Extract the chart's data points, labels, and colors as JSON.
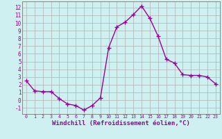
{
  "x": [
    0,
    1,
    2,
    3,
    4,
    5,
    6,
    7,
    8,
    9,
    10,
    11,
    12,
    13,
    14,
    15,
    16,
    17,
    18,
    19,
    20,
    21,
    22,
    23
  ],
  "y": [
    2.5,
    1.2,
    1.1,
    1.1,
    0.2,
    -0.5,
    -0.7,
    -1.3,
    -0.7,
    0.3,
    6.8,
    9.5,
    10.1,
    11.1,
    12.2,
    10.6,
    8.3,
    5.3,
    4.8,
    3.3,
    3.2,
    3.2,
    3.0,
    2.1
  ],
  "line_color": "#990099",
  "marker": "+",
  "marker_size": 4,
  "linewidth": 1.0,
  "xlabel": "Windchill (Refroidissement éolien,°C)",
  "xlabel_fontsize": 6.5,
  "background_color": "#cff0f0",
  "grid_color": "#b0b0b0",
  "tick_label_color": "#990099",
  "ylim": [
    -1.8,
    12.8
  ],
  "xlim": [
    -0.5,
    23.5
  ],
  "yticks": [
    -1,
    0,
    1,
    2,
    3,
    4,
    5,
    6,
    7,
    8,
    9,
    10,
    11,
    12
  ],
  "xticks": [
    0,
    1,
    2,
    3,
    4,
    5,
    6,
    7,
    8,
    9,
    10,
    11,
    12,
    13,
    14,
    15,
    16,
    17,
    18,
    19,
    20,
    21,
    22,
    23
  ]
}
